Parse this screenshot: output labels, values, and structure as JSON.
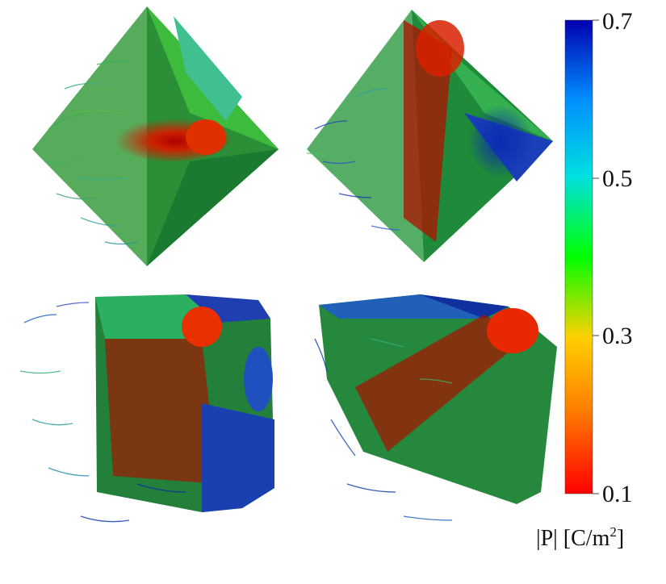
{
  "panels": [
    {
      "shape": "octahedron-view-a"
    },
    {
      "shape": "octahedron-view-b"
    },
    {
      "shape": "truncated-cube-view-a"
    },
    {
      "shape": "truncated-cube-view-b"
    }
  ],
  "colorbar": {
    "ticks": [
      "0.7",
      "0.5",
      "0.3",
      "0.1"
    ],
    "title_main": "|P| [C/m",
    "title_sup": "2",
    "title_end": "]",
    "colors": [
      "#ff0000",
      "#ff8000",
      "#ffd000",
      "#00ff00",
      "#00e0e0",
      "#0090ff",
      "#0000b0"
    ]
  }
}
